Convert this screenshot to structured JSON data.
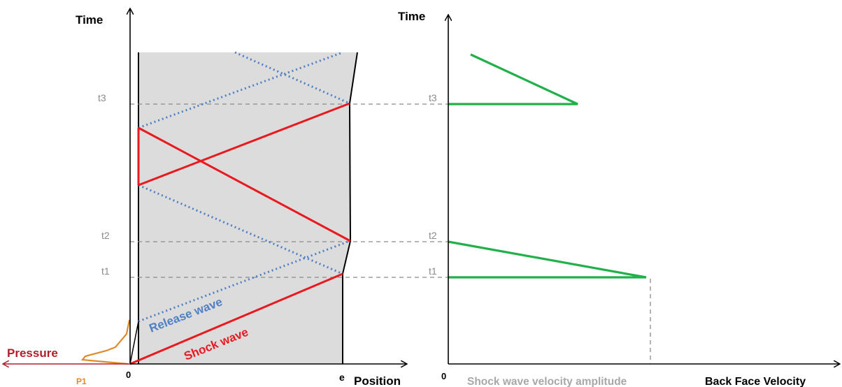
{
  "left_panel": {
    "y_axis_label": "Time",
    "x_axis_label": "Position",
    "origin_label": "0",
    "thickness_label": "e",
    "pressure_label": "Pressure",
    "pulse_label": "P1",
    "time_ticks": [
      "t1",
      "t2",
      "t3"
    ],
    "shock_wave_label": "Shock wave",
    "release_wave_label": "Release wave"
  },
  "right_panel": {
    "y_axis_label": "Time",
    "x_axis_label": "Back Face Velocity",
    "origin_label": "0",
    "amplitude_label": "Shock wave velocity amplitude",
    "time_ticks": [
      "t1",
      "t2",
      "t3"
    ]
  },
  "colors": {
    "shock": "#e8191f",
    "release": "#4f7fc4",
    "velocity": "#22b04b",
    "pressure": "#b0202a",
    "pulse": "#e08a2c",
    "sample_fill": "#dcdcdc",
    "tick": "#8a8a8a"
  }
}
